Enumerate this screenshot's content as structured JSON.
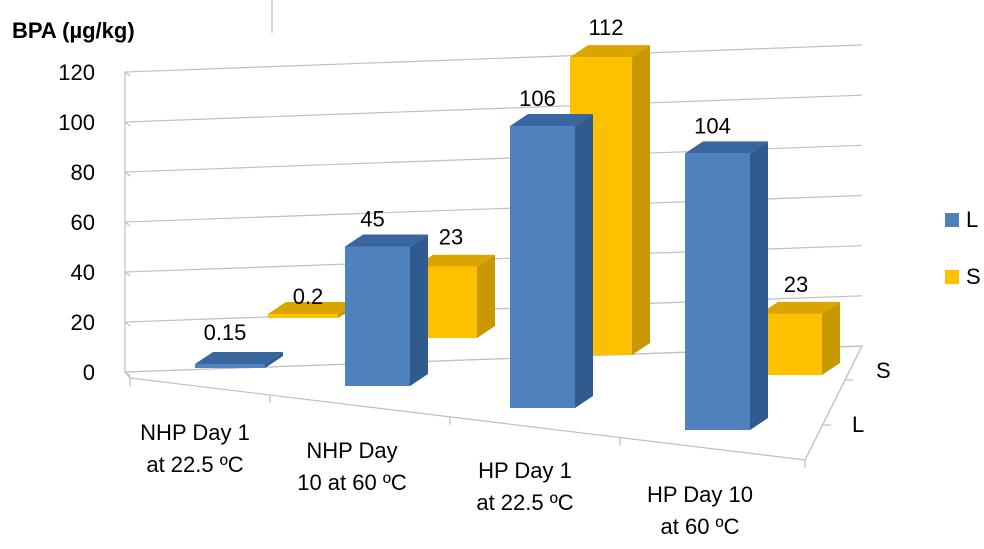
{
  "chart_data": {
    "type": "bar",
    "ylabel": "BPA (µg/kg)",
    "ylim": [
      0,
      120
    ],
    "yticks": [
      "0",
      "20",
      "40",
      "60",
      "80",
      "100",
      "120"
    ],
    "categories": [
      [
        "NHP Day 1",
        "at 22.5 ºC"
      ],
      [
        "NHP Day",
        "10 at 60 ºC"
      ],
      [
        "HP Day 1",
        "at 22.5 ºC"
      ],
      [
        "HP Day 10",
        "at 60 ºC"
      ]
    ],
    "depth_labels": [
      "S",
      "L"
    ],
    "series": [
      {
        "name": "L",
        "values": [
          0.15,
          45,
          106,
          104
        ],
        "labels": [
          "0.15",
          "45",
          "106",
          "104"
        ]
      },
      {
        "name": "S",
        "values": [
          0.2,
          23,
          112,
          23
        ],
        "labels": [
          "0.2",
          "23",
          "112",
          "23"
        ]
      }
    ],
    "colors": {
      "L": "#4f81bd",
      "L_side": "#2f5b8e",
      "L_top": "#3a66a0",
      "S": "#ffc000",
      "S_side": "#c99700",
      "S_top": "#dba500",
      "grid": "#bfbfbf"
    },
    "grid": true,
    "legend_position": "right"
  }
}
